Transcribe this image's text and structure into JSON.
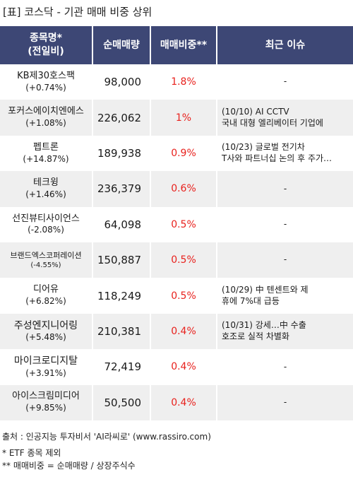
{
  "title": "[표] 코스닥 - 기관 매매 비중 상위",
  "header": {
    "name_line1": "종목명*",
    "name_line2": "(전일비)",
    "volume": "순매매량",
    "ratio": "매매비중**",
    "issue": "최근 이슈"
  },
  "rows": [
    {
      "name": "KB제30호스팩",
      "change": "(+0.74%)",
      "volume": "98,000",
      "ratio": "1.8%",
      "issue1": "-",
      "issue2": ""
    },
    {
      "name": "포커스에이치엔에스",
      "change": "(+1.08%)",
      "volume": "226,062",
      "ratio": "1%",
      "issue1": "(10/10) AI CCTV",
      "issue2": "국내 대형 엘리베이터 기업에"
    },
    {
      "name": "펩트론",
      "change": "(+14.87%)",
      "volume": "189,938",
      "ratio": "0.9%",
      "issue1": "(10/23) 글로벌 전기차",
      "issue2": "T사와 파트너십 논의 후 주가…"
    },
    {
      "name": "테크윙",
      "change": "(+1.46%)",
      "volume": "236,379",
      "ratio": "0.6%",
      "issue1": "-",
      "issue2": ""
    },
    {
      "name": "선진뷰티사이언스",
      "change": "(-2.08%)",
      "volume": "64,098",
      "ratio": "0.5%",
      "issue1": "-",
      "issue2": ""
    },
    {
      "name": "브랜드엑스코퍼레이션",
      "change": "(-4.55%)",
      "volume": "150,887",
      "ratio": "0.5%",
      "issue1": "-",
      "issue2": ""
    },
    {
      "name": "디어유",
      "change": "(+6.82%)",
      "volume": "118,249",
      "ratio": "0.5%",
      "issue1": "(10/29) 中 텐센트와 제",
      "issue2": "휴에 7%대 급등"
    },
    {
      "name": "주성엔지니어링",
      "change": "(+5.48%)",
      "volume": "210,381",
      "ratio": "0.4%",
      "issue1": "(10/31) 강세…中 수출",
      "issue2": "호조로 실적 차별화"
    },
    {
      "name": "마이크로디지탈",
      "change": "(+3.91%)",
      "volume": "72,419",
      "ratio": "0.4%",
      "issue1": "-",
      "issue2": ""
    },
    {
      "name": "아이스크림미디어",
      "change": "(+9.85%)",
      "volume": "50,500",
      "ratio": "0.4%",
      "issue1": "-",
      "issue2": ""
    }
  ],
  "footer": {
    "source": "출처 : 인공지능 투자비서 'AI라씨로' (www.rassiro.com)",
    "note1": "* ETF 종목 제외",
    "note2": "** 매매비중 = 순매매량 / 상장주식수"
  },
  "colors": {
    "header_bg": "#3d4775",
    "ratio_text": "#e8211d",
    "alt_row": "#efefef"
  }
}
